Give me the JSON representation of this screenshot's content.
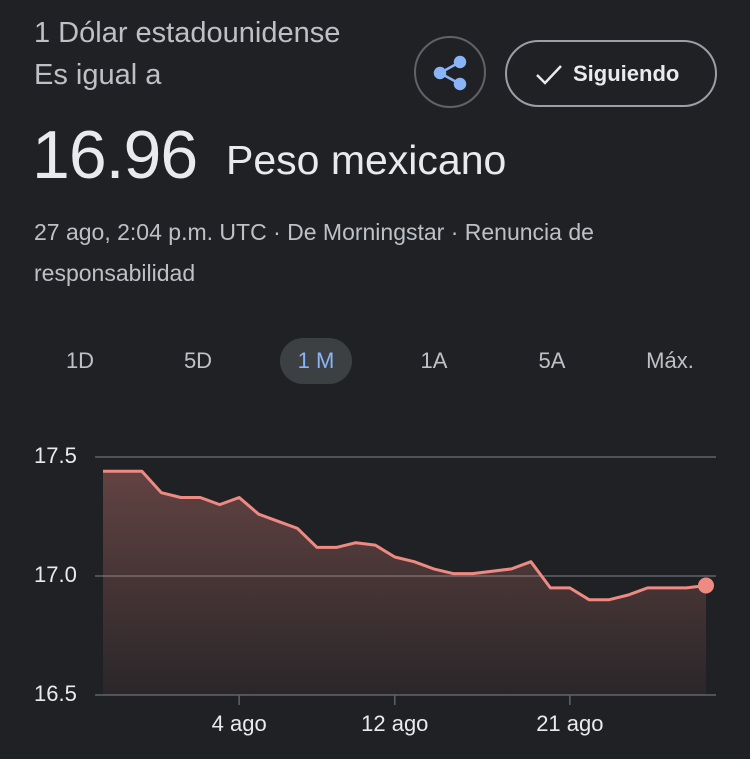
{
  "header": {
    "from": "1 Dólar estadounidense Es igual a",
    "rate": "16.96",
    "to": "Peso mexicano",
    "meta": "27 ago, 2:04 p.m. UTC · De Morningstar · Renuncia de responsabilidad",
    "follow": "Siguiendo"
  },
  "tabs": {
    "items": [
      "1D",
      "5D",
      "1 M",
      "1A",
      "5A",
      "Máx."
    ],
    "selected": 2
  },
  "chart_data": {
    "type": "area",
    "color": "#ee8a82",
    "categories": [
      null,
      null,
      null,
      null,
      null,
      null,
      null,
      "4 ago",
      null,
      null,
      null,
      null,
      null,
      null,
      null,
      "12 ago",
      null,
      null,
      null,
      null,
      null,
      null,
      null,
      null,
      "21 ago",
      null,
      null,
      null,
      null,
      null,
      null,
      null
    ],
    "values": [
      17.44,
      17.44,
      17.44,
      17.35,
      17.33,
      17.33,
      17.3,
      17.33,
      17.26,
      17.23,
      17.2,
      17.12,
      17.12,
      17.14,
      17.13,
      17.08,
      17.06,
      17.03,
      17.01,
      17.01,
      17.02,
      17.03,
      17.06,
      16.95,
      16.95,
      16.9,
      16.9,
      16.92,
      16.95,
      16.95,
      16.95,
      16.96
    ],
    "ylim": [
      16.5,
      17.5
    ],
    "yticks": [
      16.5,
      {
        "value": 17,
        "label": "17.0"
      },
      17.5
    ],
    "grid": true
  }
}
